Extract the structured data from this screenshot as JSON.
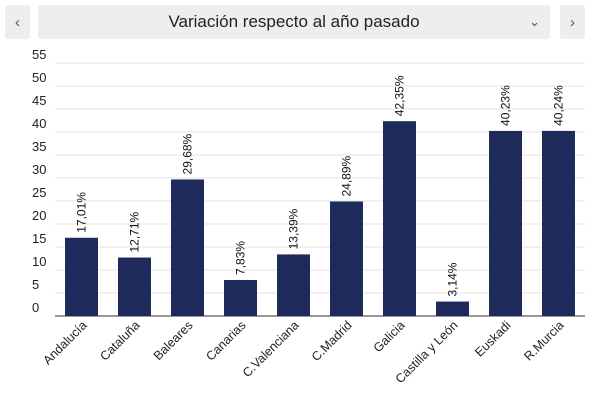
{
  "nav": {
    "prev_icon": "chevron-left-icon",
    "next_icon": "chevron-right-icon",
    "prev_glyph": "‹",
    "next_glyph": "›"
  },
  "selector": {
    "label": "Variación respecto al año pasado",
    "chevron_icon": "chevron-down-icon",
    "chevron_glyph": "⌄"
  },
  "colors": {
    "bar": "#1f2a5c",
    "grid": "#e3e3e3",
    "axis": "#333333"
  },
  "chart_data": {
    "type": "bar",
    "categories": [
      "Andalucía",
      "Cataluña",
      "Baleares",
      "Canarias",
      "C.Valenciana",
      "C.Madrid",
      "Galicia",
      "Castilla y León",
      "Euskadi",
      "R.Murcia"
    ],
    "values": [
      17.01,
      12.71,
      29.68,
      7.83,
      13.39,
      24.89,
      42.35,
      3.14,
      40.23,
      40.24
    ],
    "value_labels": [
      "17,01%",
      "12,71%",
      "29,68%",
      "7,83%",
      "13,39%",
      "24,89%",
      "42,35%",
      "3,14%",
      "40,23%",
      "40,24%"
    ],
    "y_ticks": [
      "0",
      "5",
      "10",
      "15",
      "20",
      "25",
      "30",
      "35",
      "40",
      "45",
      "50",
      "55"
    ],
    "ylim": [
      0,
      55
    ],
    "grid": true,
    "title": "",
    "xlabel": "",
    "ylabel": ""
  }
}
